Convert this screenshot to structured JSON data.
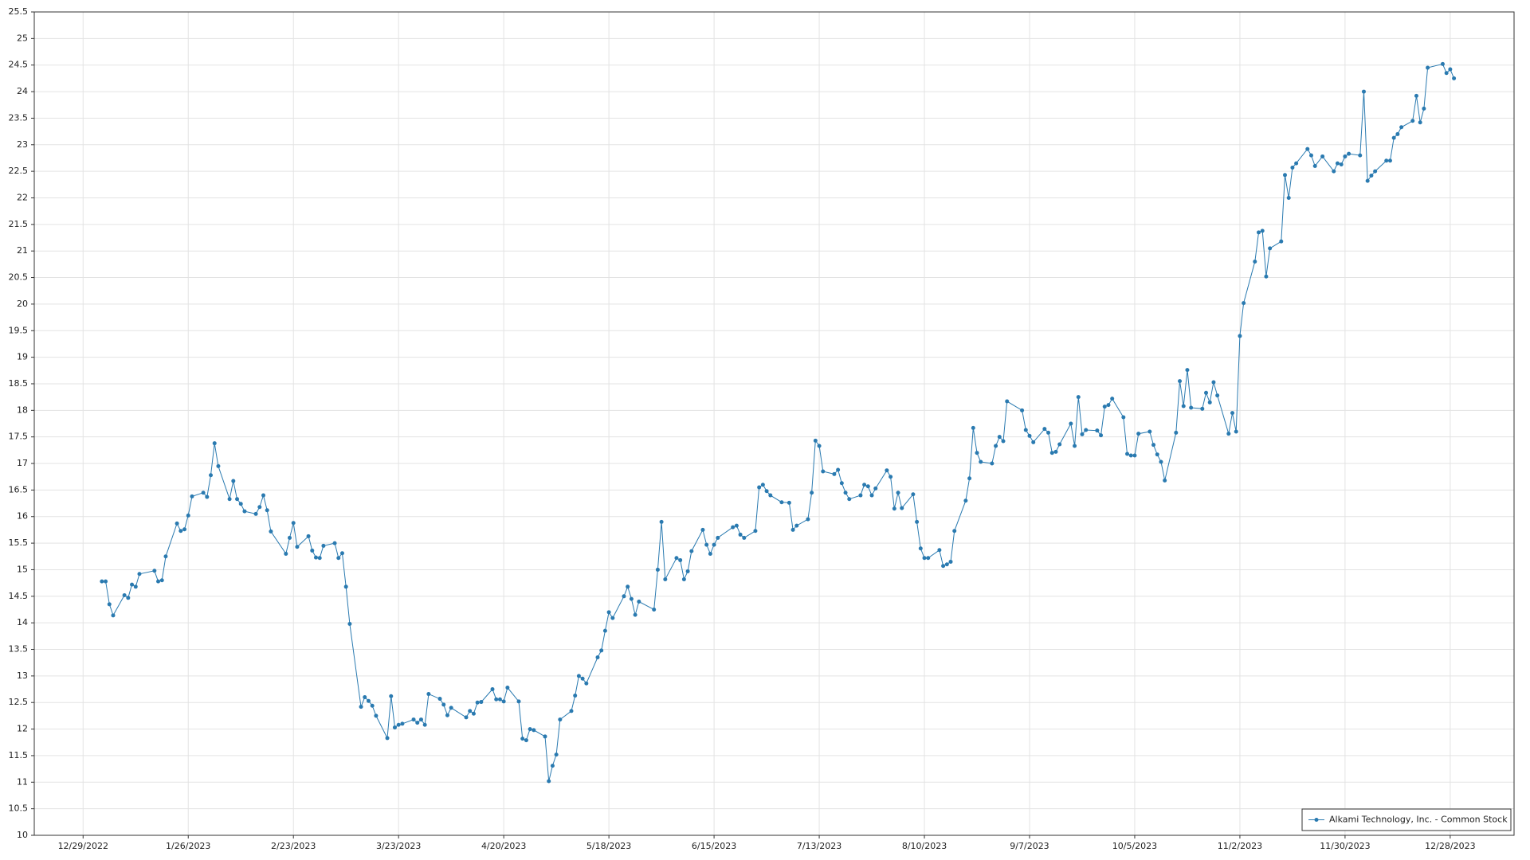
{
  "chart_data": {
    "type": "line",
    "x": [
      "1/3/2023",
      "1/4/2023",
      "1/5/2023",
      "1/6/2023",
      "1/9/2023",
      "1/10/2023",
      "1/11/2023",
      "1/12/2023",
      "1/13/2023",
      "1/17/2023",
      "1/18/2023",
      "1/19/2023",
      "1/20/2023",
      "1/23/2023",
      "1/24/2023",
      "1/25/2023",
      "1/26/2023",
      "1/27/2023",
      "1/30/2023",
      "1/31/2023",
      "2/1/2023",
      "2/2/2023",
      "2/3/2023",
      "2/6/2023",
      "2/7/2023",
      "2/8/2023",
      "2/9/2023",
      "2/10/2023",
      "2/13/2023",
      "2/14/2023",
      "2/15/2023",
      "2/16/2023",
      "2/17/2023",
      "2/21/2023",
      "2/22/2023",
      "2/23/2023",
      "2/24/2023",
      "2/27/2023",
      "2/28/2023",
      "3/1/2023",
      "3/2/2023",
      "3/3/2023",
      "3/6/2023",
      "3/7/2023",
      "3/8/2023",
      "3/9/2023",
      "3/10/2023",
      "3/13/2023",
      "3/14/2023",
      "3/15/2023",
      "3/16/2023",
      "3/17/2023",
      "3/20/2023",
      "3/21/2023",
      "3/22/2023",
      "3/23/2023",
      "3/24/2023",
      "3/27/2023",
      "3/28/2023",
      "3/29/2023",
      "3/30/2023",
      "3/31/2023",
      "4/3/2023",
      "4/4/2023",
      "4/5/2023",
      "4/6/2023",
      "4/10/2023",
      "4/11/2023",
      "4/12/2023",
      "4/13/2023",
      "4/14/2023",
      "4/17/2023",
      "4/18/2023",
      "4/19/2023",
      "4/20/2023",
      "4/21/2023",
      "4/24/2023",
      "4/25/2023",
      "4/26/2023",
      "4/27/2023",
      "4/28/2023",
      "5/1/2023",
      "5/2/2023",
      "5/3/2023",
      "5/4/2023",
      "5/5/2023",
      "5/8/2023",
      "5/9/2023",
      "5/10/2023",
      "5/11/2023",
      "5/12/2023",
      "5/15/2023",
      "5/16/2023",
      "5/17/2023",
      "5/18/2023",
      "5/19/2023",
      "5/22/2023",
      "5/23/2023",
      "5/24/2023",
      "5/25/2023",
      "5/26/2023",
      "5/30/2023",
      "5/31/2023",
      "6/1/2023",
      "6/2/2023",
      "6/5/2023",
      "6/6/2023",
      "6/7/2023",
      "6/8/2023",
      "6/9/2023",
      "6/12/2023",
      "6/13/2023",
      "6/14/2023",
      "6/15/2023",
      "6/16/2023",
      "6/20/2023",
      "6/21/2023",
      "6/22/2023",
      "6/23/2023",
      "6/26/2023",
      "6/27/2023",
      "6/28/2023",
      "6/29/2023",
      "6/30/2023",
      "7/3/2023",
      "7/5/2023",
      "7/6/2023",
      "7/7/2023",
      "7/10/2023",
      "7/11/2023",
      "7/12/2023",
      "7/13/2023",
      "7/14/2023",
      "7/17/2023",
      "7/18/2023",
      "7/19/2023",
      "7/20/2023",
      "7/21/2023",
      "7/24/2023",
      "7/25/2023",
      "7/26/2023",
      "7/27/2023",
      "7/28/2023",
      "7/31/2023",
      "8/1/2023",
      "8/2/2023",
      "8/3/2023",
      "8/4/2023",
      "8/7/2023",
      "8/8/2023",
      "8/9/2023",
      "8/10/2023",
      "8/11/2023",
      "8/14/2023",
      "8/15/2023",
      "8/16/2023",
      "8/17/2023",
      "8/18/2023",
      "8/21/2023",
      "8/22/2023",
      "8/23/2023",
      "8/24/2023",
      "8/25/2023",
      "8/28/2023",
      "8/29/2023",
      "8/30/2023",
      "8/31/2023",
      "9/1/2023",
      "9/5/2023",
      "9/6/2023",
      "9/7/2023",
      "9/8/2023",
      "9/11/2023",
      "9/12/2023",
      "9/13/2023",
      "9/14/2023",
      "9/15/2023",
      "9/18/2023",
      "9/19/2023",
      "9/20/2023",
      "9/21/2023",
      "9/22/2023",
      "9/25/2023",
      "9/26/2023",
      "9/27/2023",
      "9/28/2023",
      "9/29/2023",
      "10/2/2023",
      "10/3/2023",
      "10/4/2023",
      "10/5/2023",
      "10/6/2023",
      "10/9/2023",
      "10/10/2023",
      "10/11/2023",
      "10/12/2023",
      "10/13/2023",
      "10/16/2023",
      "10/17/2023",
      "10/18/2023",
      "10/19/2023",
      "10/20/2023",
      "10/23/2023",
      "10/24/2023",
      "10/25/2023",
      "10/26/2023",
      "10/27/2023",
      "10/30/2023",
      "10/31/2023",
      "11/1/2023",
      "11/2/2023",
      "11/3/2023",
      "11/6/2023",
      "11/7/2023",
      "11/8/2023",
      "11/9/2023",
      "11/10/2023",
      "11/13/2023",
      "11/14/2023",
      "11/15/2023",
      "11/16/2023",
      "11/17/2023",
      "11/20/2023",
      "11/21/2023",
      "11/22/2023",
      "11/24/2023",
      "11/27/2023",
      "11/28/2023",
      "11/29/2023",
      "11/30/2023",
      "12/1/2023",
      "12/4/2023",
      "12/5/2023",
      "12/6/2023",
      "12/7/2023",
      "12/8/2023",
      "12/11/2023",
      "12/12/2023",
      "12/13/2023",
      "12/14/2023",
      "12/15/2023",
      "12/18/2023",
      "12/19/2023",
      "12/20/2023",
      "12/21/2023",
      "12/22/2023",
      "12/26/2023",
      "12/27/2023",
      "12/28/2023",
      "12/29/2023"
    ],
    "series": [
      {
        "name": "Alkami Technology, Inc. - Common Stock",
        "color": "#2a7ab0",
        "values": [
          14.78,
          14.78,
          14.35,
          14.14,
          14.52,
          14.47,
          14.72,
          14.68,
          14.92,
          14.98,
          14.78,
          14.8,
          15.25,
          15.87,
          15.73,
          15.76,
          16.02,
          16.38,
          16.45,
          16.37,
          16.78,
          17.38,
          16.95,
          16.33,
          16.67,
          16.33,
          16.24,
          16.1,
          16.05,
          16.18,
          16.4,
          16.12,
          15.72,
          15.3,
          15.6,
          15.88,
          15.43,
          15.63,
          15.36,
          15.23,
          15.22,
          15.45,
          15.5,
          15.22,
          15.31,
          14.68,
          13.98,
          12.42,
          12.6,
          12.53,
          12.44,
          12.25,
          11.83,
          12.62,
          12.03,
          12.08,
          12.1,
          12.18,
          12.12,
          12.18,
          12.08,
          12.66,
          12.57,
          12.46,
          12.26,
          12.4,
          12.22,
          12.34,
          12.29,
          12.5,
          12.51,
          12.75,
          12.56,
          12.56,
          12.52,
          12.78,
          12.52,
          11.82,
          11.79,
          12.0,
          11.98,
          11.86,
          11.02,
          11.31,
          11.52,
          12.18,
          12.34,
          12.63,
          13.0,
          12.95,
          12.86,
          13.35,
          13.48,
          13.85,
          14.2,
          14.09,
          14.5,
          14.68,
          14.45,
          14.15,
          14.4,
          14.25,
          15.0,
          15.9,
          14.82,
          15.22,
          15.18,
          14.82,
          14.97,
          15.35,
          15.75,
          15.47,
          15.3,
          15.47,
          15.6,
          15.8,
          15.83,
          15.66,
          15.6,
          15.73,
          16.55,
          16.6,
          16.48,
          16.4,
          16.27,
          16.26,
          15.75,
          15.83,
          15.95,
          16.45,
          17.43,
          17.33,
          16.85,
          16.8,
          16.88,
          16.63,
          16.45,
          16.33,
          16.4,
          16.6,
          16.57,
          16.4,
          16.53,
          16.87,
          16.75,
          16.15,
          16.45,
          16.16,
          16.42,
          15.9,
          15.4,
          15.22,
          15.22,
          15.37,
          15.07,
          15.1,
          15.15,
          15.73,
          16.3,
          16.72,
          17.67,
          17.2,
          17.03,
          17.0,
          17.33,
          17.5,
          17.42,
          18.17,
          18.0,
          17.63,
          17.52,
          17.4,
          17.65,
          17.58,
          17.2,
          17.22,
          17.36,
          17.75,
          17.33,
          18.25,
          17.55,
          17.63,
          17.62,
          17.53,
          18.07,
          18.1,
          18.22,
          17.87,
          17.18,
          17.15,
          17.15,
          17.56,
          17.6,
          17.35,
          17.17,
          17.03,
          16.68,
          17.58,
          18.55,
          18.08,
          18.76,
          18.05,
          18.03,
          18.33,
          18.15,
          18.53,
          18.28,
          17.56,
          17.95,
          17.6,
          19.4,
          20.02,
          20.8,
          21.35,
          21.38,
          20.52,
          21.05,
          21.18,
          22.43,
          22.0,
          22.57,
          22.65,
          22.92,
          22.8,
          22.6,
          22.78,
          22.5,
          22.65,
          22.63,
          22.78,
          22.83,
          22.8,
          24.0,
          22.32,
          22.42,
          22.5,
          22.7,
          22.7,
          23.13,
          23.2,
          23.33,
          23.45,
          23.92,
          23.42,
          23.68,
          24.45,
          24.52,
          24.35,
          24.42,
          24.25
        ]
      }
    ],
    "xlim": [
      "12/16/2022",
      "1/14/2024"
    ],
    "xticks": [
      "12/29/2022",
      "1/26/2023",
      "2/23/2023",
      "3/23/2023",
      "4/20/2023",
      "5/18/2023",
      "6/15/2023",
      "7/13/2023",
      "8/10/2023",
      "9/7/2023",
      "10/5/2023",
      "11/2/2023",
      "11/30/2023",
      "12/28/2023"
    ],
    "ylim": [
      10,
      25.5
    ],
    "yticks": [
      10,
      10.5,
      11,
      11.5,
      12,
      12.5,
      13,
      13.5,
      14,
      14.5,
      15,
      15.5,
      16,
      16.5,
      17,
      17.5,
      18,
      18.5,
      19,
      19.5,
      20,
      20.5,
      21,
      21.5,
      22,
      22.5,
      23,
      23.5,
      24,
      24.5,
      25,
      25.5
    ],
    "grid": true,
    "legend": "lower right",
    "markers": true
  }
}
